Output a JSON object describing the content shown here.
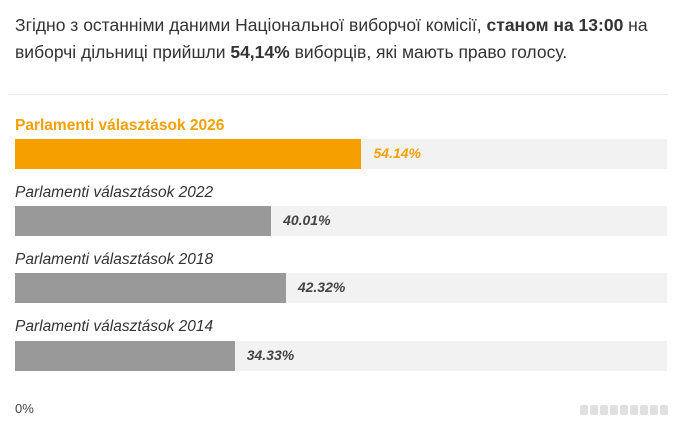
{
  "intro": {
    "part1": "Згідно з останніми даними Національної виборчої комісії, ",
    "bold1": "станом на 13:00",
    "part2": " на виборчі дільниці прийшли ",
    "bold2": "54,14%",
    "part3": " виборців, які мають право голосу."
  },
  "colors": {
    "highlight": "#f5a000",
    "highlight_text": "#f5a000",
    "default_bar": "#999999",
    "default_text": "#444444",
    "track": "#f2f2f2"
  },
  "chart_data": {
    "type": "bar",
    "orientation": "horizontal",
    "categories": [
      "Parlamenti választások 2026",
      "Parlamenti választások 2022",
      "Parlamenti választások 2018",
      "Parlamenti választások 2014"
    ],
    "values": [
      54.14,
      40.01,
      42.32,
      34.33
    ],
    "value_labels": [
      "54.14%",
      "40.01%",
      "42.32%",
      "34.33%"
    ],
    "highlighted": [
      true,
      false,
      false,
      false
    ],
    "xlim": [
      0,
      100
    ],
    "x_axis_min_label": "0%",
    "grid": false
  }
}
